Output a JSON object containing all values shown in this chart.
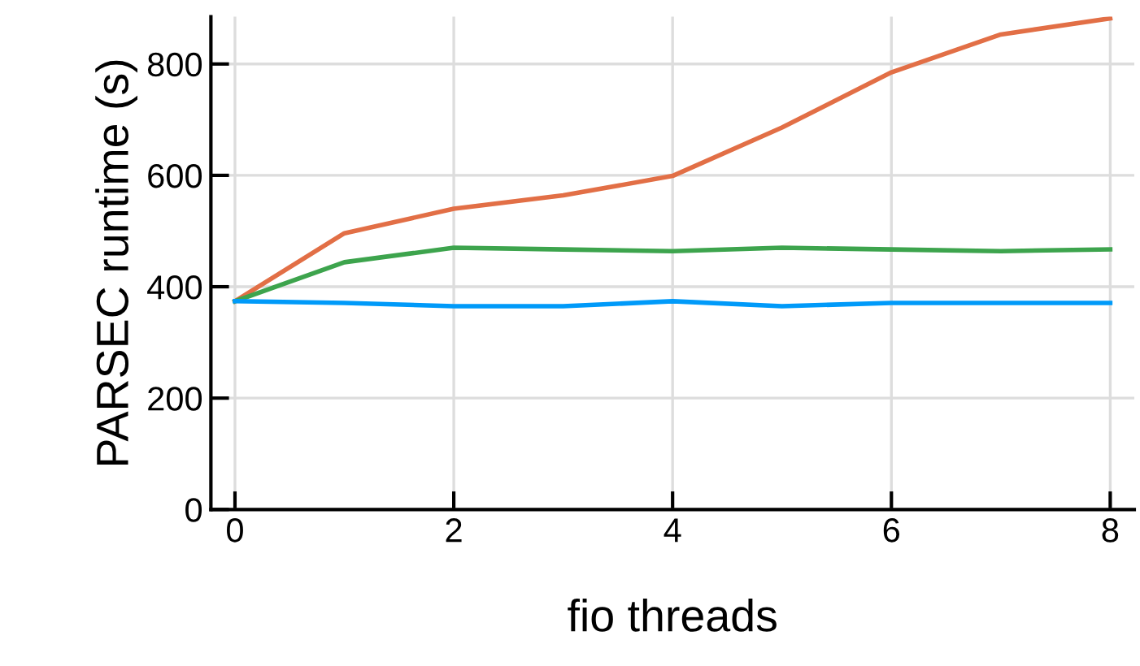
{
  "chart_data": {
    "type": "line",
    "xlabel": "fio threads",
    "ylabel": "PARSEC runtime (s)",
    "x": [
      0,
      1,
      2,
      3,
      4,
      5,
      6,
      7,
      8
    ],
    "series": [
      {
        "color": "#e26f46",
        "values": [
          374,
          496,
          540,
          564,
          599,
          686,
          785,
          853,
          882
        ]
      },
      {
        "color": "#3da44d",
        "values": [
          374,
          444,
          470,
          467,
          464,
          470,
          467,
          464,
          467
        ]
      },
      {
        "color": "#009af9",
        "values": [
          374,
          371,
          365,
          365,
          374,
          365,
          371,
          371,
          371
        ]
      }
    ],
    "xlim": [
      -0.22,
      8.22
    ],
    "ylim": [
      0,
      885
    ],
    "xticks": [
      0,
      2,
      4,
      6,
      8
    ],
    "yticks": [
      0,
      200,
      400,
      600,
      800
    ],
    "grid": true,
    "marker": "none",
    "line_style": "solid"
  }
}
